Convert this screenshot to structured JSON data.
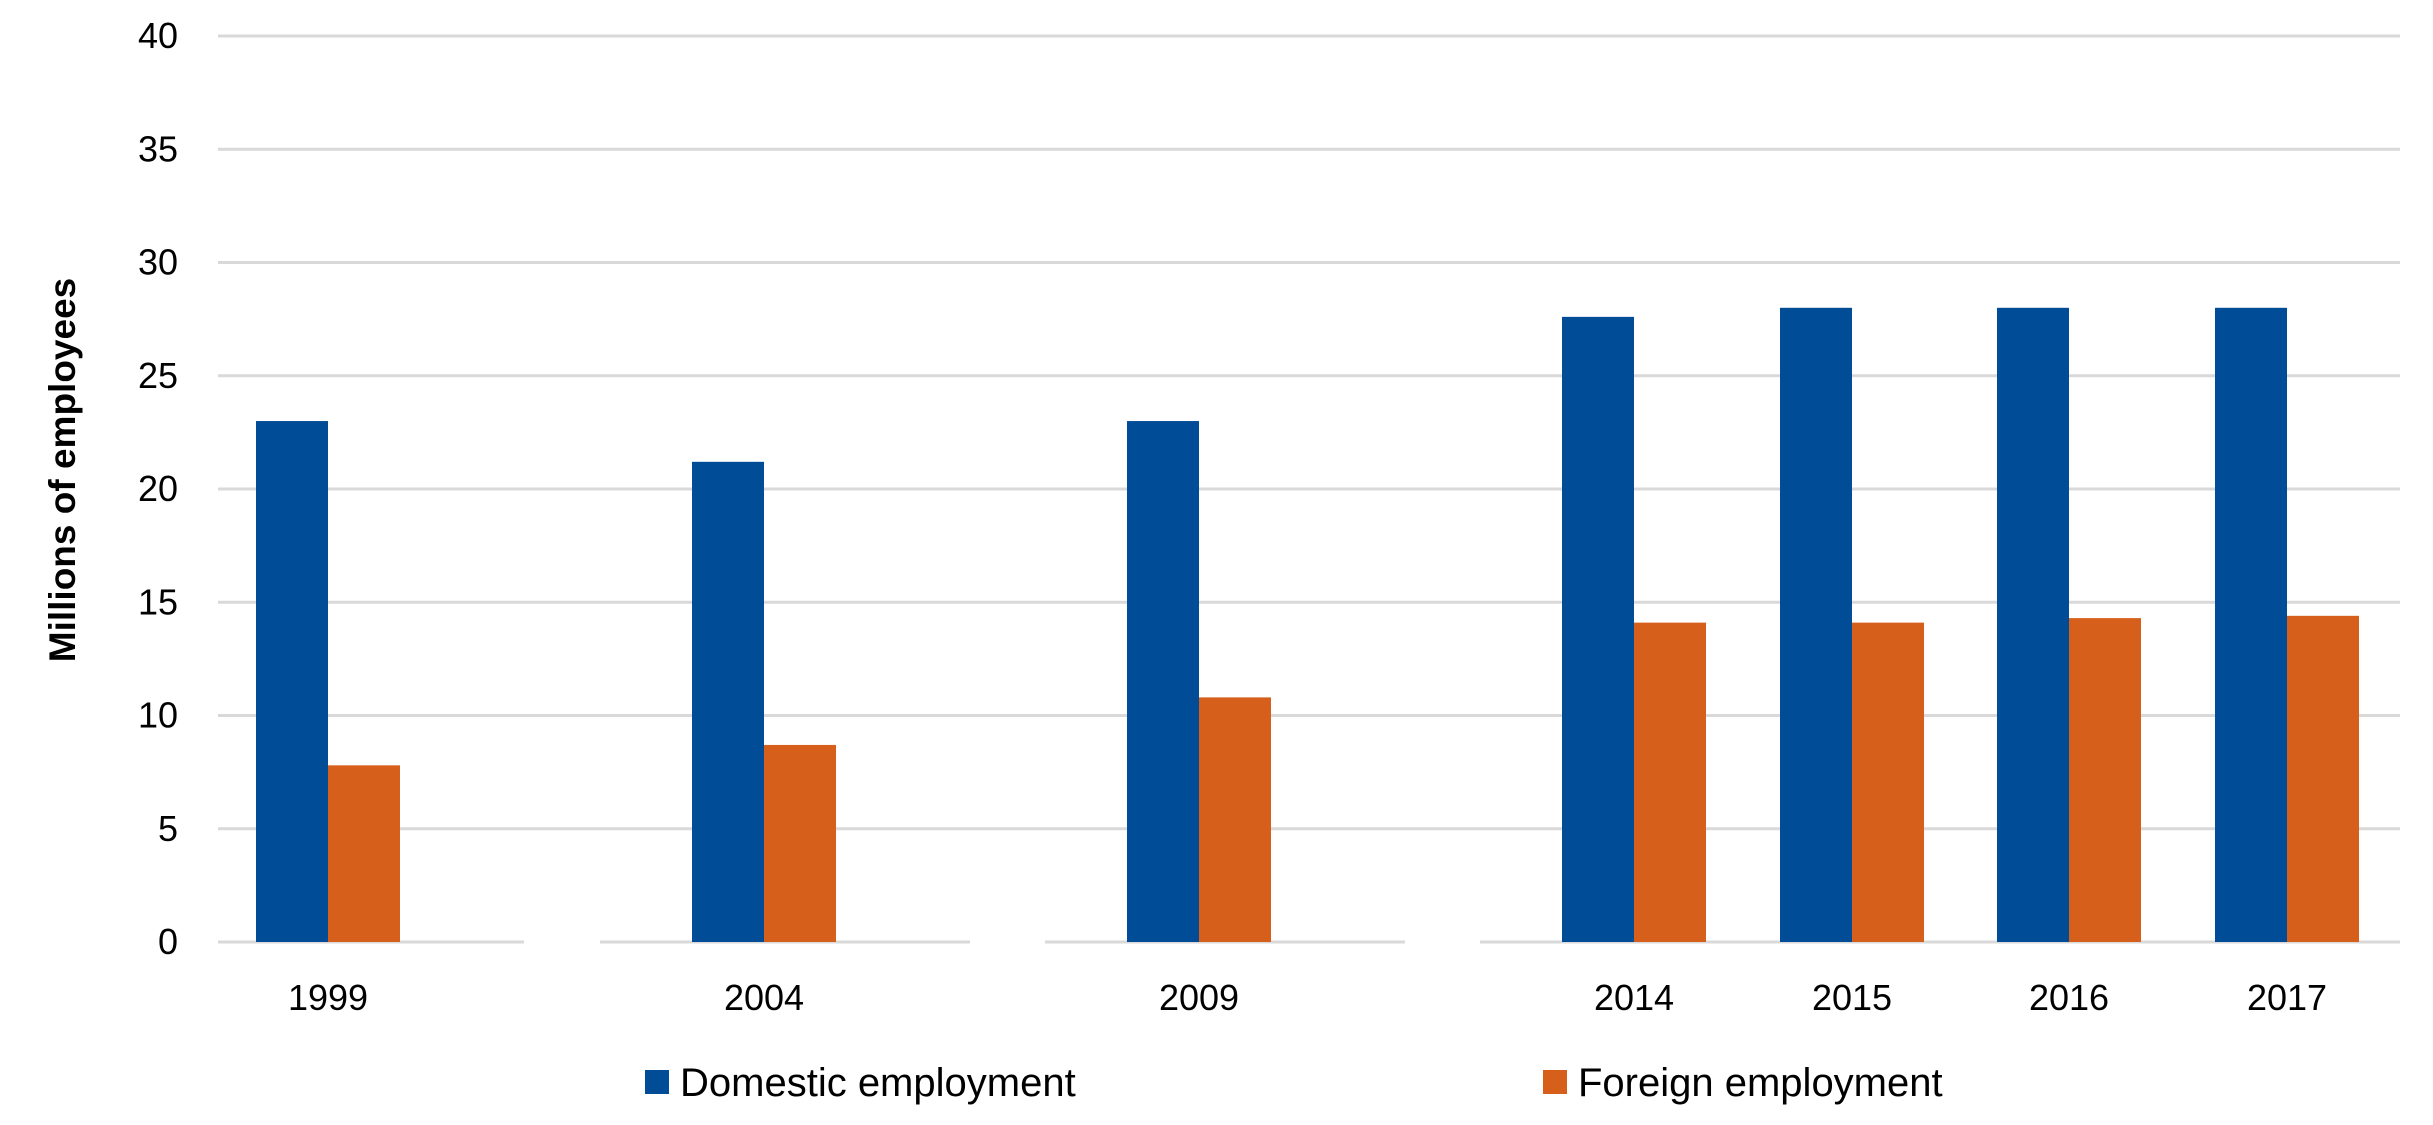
{
  "chart_data": {
    "type": "bar",
    "categories": [
      "1999",
      "2004",
      "2009",
      "2014",
      "2015",
      "2016",
      "2017"
    ],
    "series": [
      {
        "name": "Domestic employment",
        "color": "#004c97",
        "values": [
          23.0,
          21.2,
          23.0,
          27.6,
          28.0,
          28.0,
          28.0
        ]
      },
      {
        "name": "Foreign employment",
        "color": "#d75f1c",
        "values": [
          7.8,
          8.7,
          10.8,
          14.1,
          14.1,
          14.3,
          14.4
        ]
      }
    ],
    "title": "",
    "xlabel": "",
    "ylabel": "Millions of employees",
    "ylim": [
      0,
      40
    ],
    "yticks": [
      0,
      5,
      10,
      15,
      20,
      25,
      30,
      35,
      40
    ],
    "grid": true,
    "legend_position": "bottom"
  }
}
